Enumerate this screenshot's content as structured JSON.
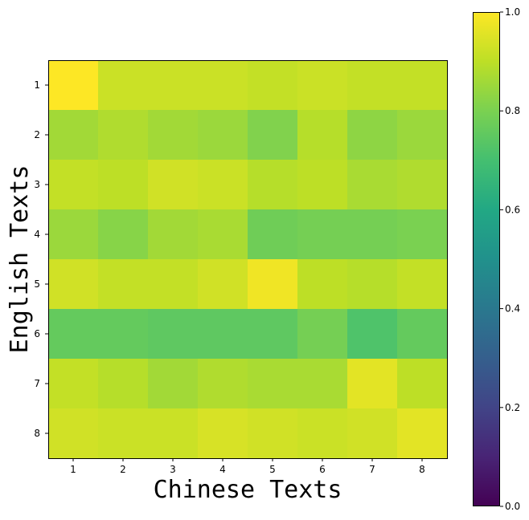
{
  "chart_data": {
    "type": "heatmap",
    "xlabel": "Chinese Texts",
    "ylabel": "English Texts",
    "x_categories": [
      "1",
      "2",
      "3",
      "4",
      "5",
      "6",
      "7",
      "8"
    ],
    "y_categories": [
      "1",
      "2",
      "3",
      "4",
      "5",
      "6",
      "7",
      "8"
    ],
    "values": [
      [
        1.0,
        0.92,
        0.92,
        0.92,
        0.91,
        0.92,
        0.91,
        0.91
      ],
      [
        0.86,
        0.88,
        0.86,
        0.85,
        0.81,
        0.89,
        0.83,
        0.85
      ],
      [
        0.91,
        0.9,
        0.93,
        0.92,
        0.89,
        0.9,
        0.87,
        0.88
      ],
      [
        0.85,
        0.82,
        0.86,
        0.87,
        0.78,
        0.79,
        0.79,
        0.8
      ],
      [
        0.93,
        0.91,
        0.91,
        0.93,
        0.98,
        0.9,
        0.89,
        0.91
      ],
      [
        0.76,
        0.76,
        0.75,
        0.75,
        0.75,
        0.79,
        0.72,
        0.76
      ],
      [
        0.91,
        0.89,
        0.86,
        0.88,
        0.87,
        0.87,
        0.96,
        0.9
      ],
      [
        0.93,
        0.92,
        0.92,
        0.94,
        0.93,
        0.92,
        0.93,
        0.96
      ]
    ],
    "colormap": "viridis",
    "colorbar": {
      "range": [
        0.0,
        1.0
      ],
      "ticks": [
        "0.0",
        "0.2",
        "0.4",
        "0.6",
        "0.8",
        "1.0"
      ]
    },
    "grid": false
  }
}
